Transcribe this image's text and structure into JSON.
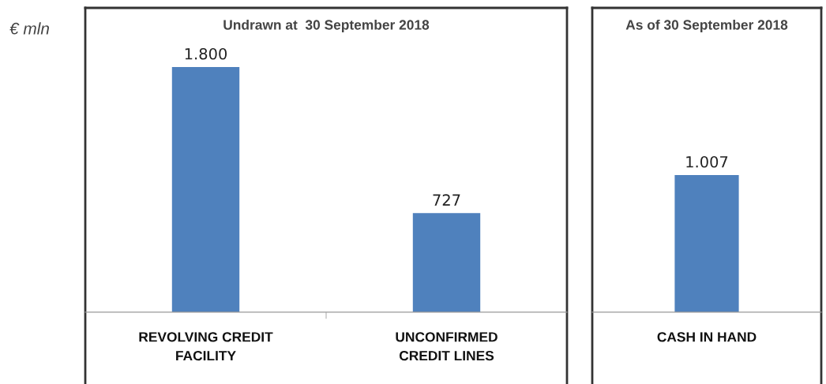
{
  "chart_data": {
    "type": "bar",
    "ylabel": "€ mln",
    "categories": [
      "REVOLVING CREDIT FACILITY",
      "UNCONFIRMED CREDIT LINES",
      "CASH IN HAND"
    ],
    "values": [
      1800,
      727,
      1007
    ],
    "value_labels": [
      "1.800",
      "727",
      "1.007"
    ],
    "color": "#4f81bd",
    "annotations": [
      "Undrawn at  30 September 2018",
      "As of 30 September 2018"
    ],
    "grid": false,
    "legend": false
  }
}
